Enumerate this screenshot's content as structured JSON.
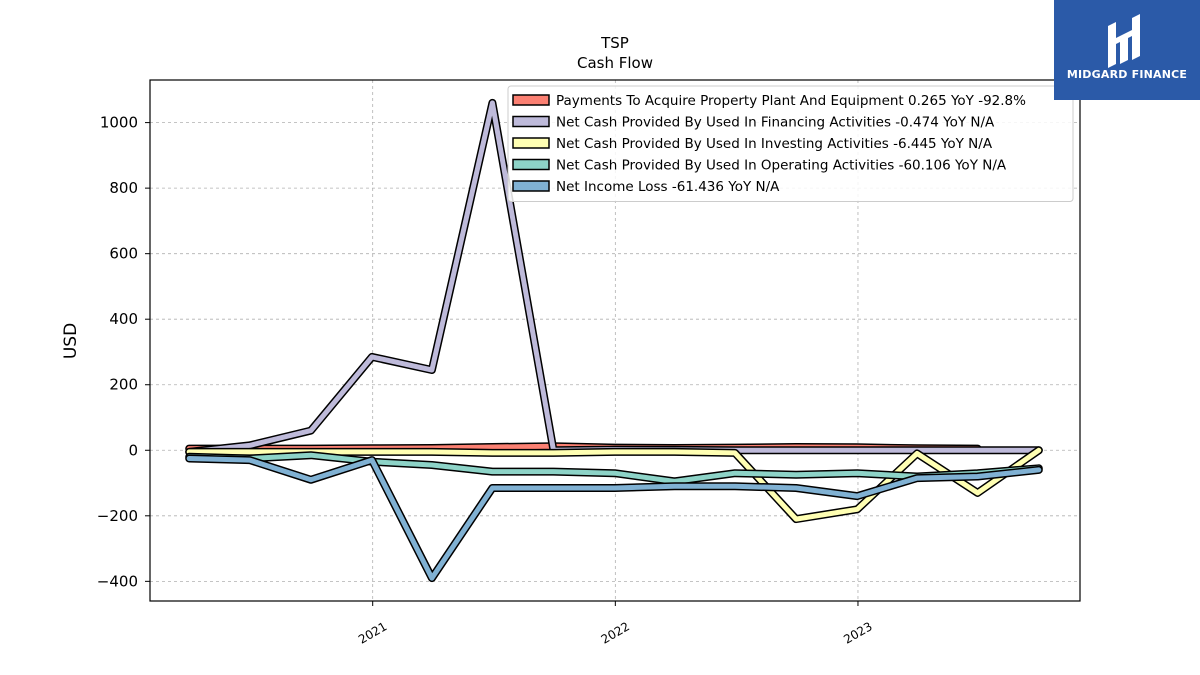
{
  "brand": {
    "name": "MIDGARD FINANCE",
    "color": "#2b5aa8"
  },
  "chart_data": {
    "type": "line",
    "title": "TSP",
    "subtitle": "Cash Flow",
    "ylabel": "USD",
    "xlabel": "",
    "ylim": [
      -460,
      1130
    ],
    "xlim": [
      "2020-02-01",
      "2023-12-01"
    ],
    "yticks": [
      -400,
      -200,
      0,
      200,
      400,
      600,
      800,
      1000
    ],
    "ytick_labels": [
      "−400",
      "−200",
      "0",
      "200",
      "400",
      "600",
      "800",
      "1000"
    ],
    "xticks": [
      "2021-01-01",
      "2022-01-01",
      "2023-01-01"
    ],
    "xtick_labels": [
      "2021",
      "2022",
      "2023"
    ],
    "grid": true,
    "legend_position": "top-right",
    "x": [
      "2020-03-31",
      "2020-06-30",
      "2020-09-30",
      "2020-12-31",
      "2021-03-31",
      "2021-06-30",
      "2021-09-30",
      "2021-12-31",
      "2022-03-31",
      "2022-06-30",
      "2022-09-30",
      "2022-12-31",
      "2023-03-31",
      "2023-06-30",
      "2023-09-30"
    ],
    "series": [
      {
        "name": "Payments To Acquire Property Plant And Equipment  0.265 YoY -92.8%",
        "color": "#fb8072",
        "values": [
          5,
          5,
          5,
          6,
          7,
          10,
          12,
          8,
          7,
          8,
          10,
          9,
          6,
          5,
          null
        ]
      },
      {
        "name": "Net Cash Provided By Used In Financing Activities  -0.474 YoY N/A",
        "color": "#bebada",
        "values": [
          -5,
          15,
          60,
          285,
          245,
          1060,
          0,
          2,
          1,
          0,
          0,
          0,
          0,
          0,
          0
        ]
      },
      {
        "name": "Net Cash Provided By Used In Investing Activities  -6.445 YoY N/A",
        "color": "#ffffb3",
        "values": [
          -5,
          -5,
          -5,
          -5,
          -5,
          -8,
          -8,
          -5,
          -5,
          -8,
          -210,
          -180,
          -10,
          -130,
          0
        ]
      },
      {
        "name": "Net Cash Provided By Used In Operating Activities  -60.106 YoY N/A",
        "color": "#8dd3c7",
        "values": [
          -20,
          -25,
          -15,
          -35,
          -45,
          -65,
          -65,
          -70,
          -95,
          -70,
          -75,
          -70,
          -80,
          -70,
          -55
        ]
      },
      {
        "name": "Net Income Loss  -61.436 YoY N/A",
        "color": "#80b1d3",
        "values": [
          -25,
          -30,
          -90,
          -30,
          -390,
          -115,
          -115,
          -115,
          -110,
          -110,
          -115,
          -140,
          -85,
          -80,
          -60
        ]
      }
    ]
  }
}
